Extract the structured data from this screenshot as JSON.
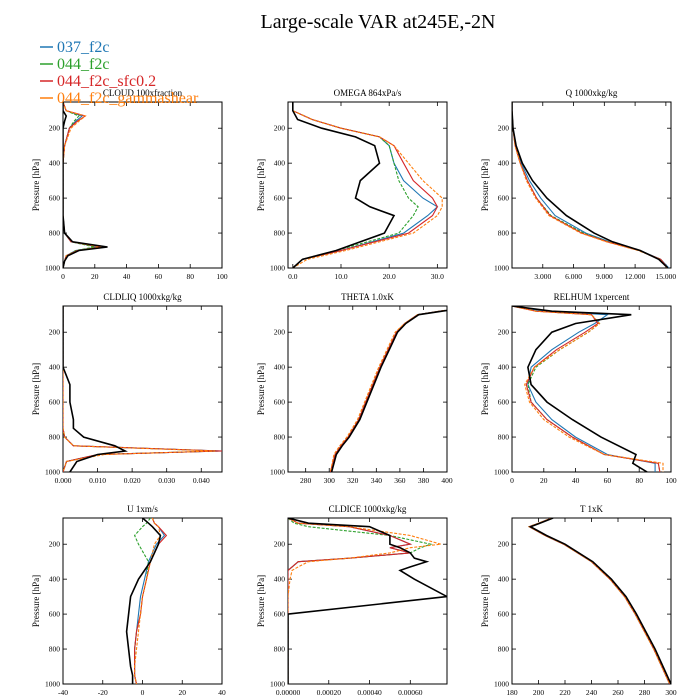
{
  "title": "Large-scale VAR at245E,-2N",
  "colors": {
    "037_f2c": "#1f77b4",
    "044_f2c": "#2ca02c",
    "044_f2c_sfc0.2": "#d62728",
    "044_f2c_gammashear": "#ff7f0e",
    "obs": "#000000"
  },
  "legend": {
    "entries": [
      "037_f2c",
      "044_f2c",
      "044_f2c_sfc0.2",
      "044_f2c_gammashear"
    ]
  },
  "shared": {
    "ylabel": "Pressure [hPa]",
    "yticks": [
      "200",
      "400",
      "600",
      "800",
      "1000"
    ],
    "ylim": [
      1000,
      50
    ]
  },
  "chart_data": [
    {
      "type": "line",
      "title": "CLOUD 100xfraction",
      "xlim": [
        0,
        100
      ],
      "xticks": [
        "0",
        "20",
        "40",
        "60",
        "80",
        "100"
      ],
      "p": [
        50,
        100,
        130,
        160,
        200,
        300,
        400,
        500,
        600,
        700,
        800,
        850,
        880,
        900,
        930,
        960,
        1000
      ],
      "series": [
        {
          "name": "037_f2c",
          "x": [
            0,
            2,
            12,
            8,
            4,
            1,
            0,
            0,
            0,
            0,
            1,
            5,
            22,
            8,
            2,
            1,
            0
          ]
        },
        {
          "name": "044_f2c",
          "x": [
            0,
            2,
            10,
            7,
            4,
            1,
            0,
            0,
            0,
            0,
            1,
            5,
            20,
            8,
            2,
            1,
            0
          ]
        },
        {
          "name": "044_f2c_sfc0.2",
          "x": [
            0,
            2,
            14,
            9,
            4,
            1,
            0,
            0,
            0,
            0,
            1,
            5,
            24,
            9,
            2,
            1,
            0
          ]
        },
        {
          "name": "044_f2c_gammashear",
          "x": [
            0,
            2,
            14,
            10,
            5,
            1,
            0,
            0,
            0,
            0,
            1,
            6,
            24,
            10,
            2,
            1,
            0
          ]
        },
        {
          "name": "obs",
          "x": [
            0,
            0,
            2,
            1,
            0,
            0,
            0,
            0,
            0,
            0,
            1,
            6,
            28,
            10,
            3,
            1,
            0
          ]
        }
      ]
    },
    {
      "type": "line",
      "title": "OMEGA 864xPa/s",
      "xlim": [
        -1,
        32
      ],
      "xticks": [
        "0.0",
        "10.0",
        "20.0",
        "30.0"
      ],
      "p": [
        50,
        100,
        150,
        200,
        250,
        300,
        400,
        500,
        600,
        650,
        700,
        800,
        900,
        950,
        1000
      ],
      "series": [
        {
          "name": "037_f2c",
          "x": [
            0,
            0,
            4,
            10,
            18,
            20,
            21,
            23,
            27,
            30,
            28,
            23,
            10,
            2,
            0
          ]
        },
        {
          "name": "044_f2c",
          "x": [
            0,
            0,
            4,
            10,
            18,
            20,
            21,
            22,
            24,
            26,
            25,
            22,
            9,
            2,
            0
          ]
        },
        {
          "name": "044_f2c_sfc0.2",
          "x": [
            0,
            0,
            4,
            10,
            18,
            21,
            23,
            25,
            29,
            30,
            29,
            24,
            10,
            2,
            0
          ]
        },
        {
          "name": "044_f2c_gammashear",
          "x": [
            0,
            0,
            4,
            10,
            18,
            21,
            24,
            27,
            31,
            31,
            30,
            25,
            11,
            3,
            0
          ]
        },
        {
          "name": "obs",
          "x": [
            0,
            0,
            1,
            6,
            13,
            17,
            18,
            14,
            13,
            16,
            21,
            19,
            9,
            2,
            0
          ]
        }
      ]
    },
    {
      "type": "line",
      "title": "Q 1000xkg/kg",
      "xlim": [
        0,
        15.5
      ],
      "xticks": [
        "3.000",
        "6.000",
        "9.000",
        "12.000",
        "15.000"
      ],
      "p": [
        50,
        100,
        200,
        300,
        400,
        500,
        600,
        700,
        800,
        850,
        900,
        950,
        1000
      ],
      "series": [
        {
          "name": "037_f2c",
          "x": [
            0,
            0,
            0.1,
            0.4,
            0.9,
            1.7,
            2.8,
            4.2,
            7.2,
            9.5,
            12.5,
            14.5,
            15.3
          ]
        },
        {
          "name": "044_f2c",
          "x": [
            0,
            0,
            0.1,
            0.3,
            0.8,
            1.5,
            2.4,
            3.8,
            7.0,
            9.4,
            12.4,
            14.5,
            15.2
          ]
        },
        {
          "name": "044_f2c_sfc0.2",
          "x": [
            0,
            0,
            0.1,
            0.3,
            0.8,
            1.5,
            2.4,
            3.7,
            6.8,
            9.3,
            12.4,
            14.5,
            15.2
          ]
        },
        {
          "name": "044_f2c_gammashear",
          "x": [
            0,
            0,
            0.1,
            0.3,
            0.8,
            1.4,
            2.3,
            3.6,
            6.7,
            9.2,
            12.3,
            14.4,
            15.1
          ]
        },
        {
          "name": "obs",
          "x": [
            0,
            0,
            0.1,
            0.4,
            1.0,
            2.0,
            3.4,
            5.3,
            8.0,
            9.8,
            12.5,
            14.3,
            15.2
          ]
        }
      ]
    },
    {
      "type": "line",
      "title": "CLDLIQ 1000xkg/kg",
      "xlim": [
        0,
        0.046
      ],
      "xticks": [
        "0.000",
        "0.010",
        "0.020",
        "0.030",
        "0.040"
      ],
      "p": [
        50,
        400,
        450,
        500,
        600,
        700,
        750,
        800,
        850,
        880,
        900,
        940,
        1000
      ],
      "series": [
        {
          "name": "037_f2c",
          "x": [
            0,
            0,
            0,
            0,
            0,
            0,
            0,
            0.0005,
            0.003,
            0.046,
            0.01,
            0.001,
            0
          ]
        },
        {
          "name": "044_f2c",
          "x": [
            0,
            0,
            0,
            0,
            0,
            0,
            0,
            0.0005,
            0.003,
            0.045,
            0.01,
            0.001,
            0
          ]
        },
        {
          "name": "044_f2c_sfc0.2",
          "x": [
            0,
            0,
            0,
            0,
            0,
            0,
            0,
            0.0005,
            0.003,
            0.046,
            0.01,
            0.001,
            0
          ]
        },
        {
          "name": "044_f2c_gammashear",
          "x": [
            0,
            0,
            0,
            0,
            0,
            0,
            0,
            0.0005,
            0.003,
            0.044,
            0.012,
            0.001,
            0
          ]
        },
        {
          "name": "obs",
          "x": [
            0,
            0,
            0.001,
            0.002,
            0.002,
            0.003,
            0.003,
            0.006,
            0.015,
            0.018,
            0.01,
            0.004,
            0.002
          ]
        }
      ]
    },
    {
      "type": "line",
      "title": "THETA 1.0xK",
      "xlim": [
        265,
        400
      ],
      "xticks": [
        "280",
        "300",
        "320",
        "340",
        "360",
        "380",
        "400"
      ],
      "p": [
        75,
        100,
        150,
        200,
        300,
        400,
        500,
        600,
        700,
        800,
        850,
        900,
        1000
      ],
      "series": [
        {
          "name": "037_f2c",
          "x": [
            398,
            375,
            364,
            357,
            350,
            343,
            337,
            331,
            325,
            316,
            310,
            305,
            301
          ]
        },
        {
          "name": "044_f2c",
          "x": [
            398,
            375,
            364,
            357,
            350,
            343,
            337,
            331,
            325,
            316,
            310,
            305,
            301
          ]
        },
        {
          "name": "044_f2c_sfc0.2",
          "x": [
            398,
            375,
            364,
            357,
            350,
            343,
            337,
            331,
            325,
            316,
            310,
            305,
            301
          ]
        },
        {
          "name": "044_f2c_gammashear",
          "x": [
            398,
            375,
            364,
            356,
            349,
            342,
            336,
            330,
            324,
            315,
            309,
            304,
            301
          ]
        },
        {
          "name": "obs",
          "x": [
            400,
            376,
            365,
            358,
            351,
            344,
            338,
            332,
            326,
            317,
            311,
            306,
            302
          ]
        }
      ]
    },
    {
      "type": "line",
      "title": "RELHUM 1xpercent",
      "xlim": [
        0,
        100
      ],
      "xticks": [
        "0",
        "20",
        "40",
        "60",
        "80",
        "100"
      ],
      "p": [
        50,
        80,
        100,
        150,
        200,
        300,
        400,
        500,
        600,
        700,
        800,
        900,
        950,
        1000
      ],
      "series": [
        {
          "name": "037_f2c",
          "x": [
            0,
            20,
            60,
            52,
            42,
            25,
            12,
            10,
            15,
            25,
            40,
            60,
            90,
            90
          ]
        },
        {
          "name": "044_f2c",
          "x": [
            0,
            15,
            50,
            55,
            48,
            30,
            15,
            10,
            12,
            22,
            38,
            58,
            92,
            93
          ]
        },
        {
          "name": "044_f2c_sfc0.2",
          "x": [
            0,
            15,
            50,
            54,
            46,
            28,
            14,
            9,
            12,
            22,
            38,
            58,
            92,
            93
          ]
        },
        {
          "name": "044_f2c_gammashear",
          "x": [
            0,
            15,
            50,
            55,
            48,
            30,
            14,
            8,
            11,
            20,
            36,
            58,
            95,
            95
          ]
        },
        {
          "name": "obs",
          "x": [
            0,
            25,
            75,
            40,
            25,
            15,
            10,
            12,
            22,
            38,
            56,
            78,
            76,
            85
          ]
        }
      ]
    },
    {
      "type": "line",
      "title": "U 1xm/s",
      "xlim": [
        -40,
        40
      ],
      "xticks": [
        "-40",
        "-20",
        "0",
        "20",
        "40"
      ],
      "p": [
        50,
        80,
        100,
        150,
        200,
        300,
        400,
        500,
        600,
        700,
        800,
        900,
        950,
        1000
      ],
      "series": [
        {
          "name": "037_f2c",
          "x": [
            5,
            6,
            8,
            11,
            7,
            3,
            1,
            -1,
            -2,
            -3,
            -4,
            -4,
            -4,
            -3
          ]
        },
        {
          "name": "044_f2c",
          "x": [
            4,
            2,
            0,
            -4,
            -2,
            3,
            2,
            0,
            -1,
            -3,
            -4,
            -4,
            -4,
            -3
          ]
        },
        {
          "name": "044_f2c_sfc0.2",
          "x": [
            5,
            6,
            8,
            12,
            8,
            4,
            2,
            0,
            -1,
            -3,
            -4,
            -4,
            -4,
            -3
          ]
        },
        {
          "name": "044_f2c_gammashear",
          "x": [
            5,
            6,
            8,
            9,
            6,
            4,
            2,
            0,
            -1,
            -2,
            -3,
            -4,
            -4,
            -3
          ]
        },
        {
          "name": "obs",
          "x": [
            0,
            3,
            5,
            9,
            8,
            4,
            -2,
            -6,
            -7,
            -8,
            -7,
            -6,
            -5,
            -5
          ]
        }
      ]
    },
    {
      "type": "line",
      "title": "CLDICE 1000xkg/kg",
      "xlim": [
        0,
        0.00078
      ],
      "xticks": [
        "0.00000",
        "0.00020",
        "0.00040",
        "0.00060"
      ],
      "p": [
        50,
        80,
        100,
        150,
        200,
        220,
        250,
        280,
        300,
        330,
        350,
        400,
        500,
        600,
        1000
      ],
      "series": [
        {
          "name": "037_f2c",
          "x": [
            0,
            5e-05,
            0.0003,
            0.0005,
            0.0006,
            0.0005,
            0.0006,
            0.0003,
            5e-05,
            2e-05,
            0,
            0,
            0,
            0,
            0
          ]
        },
        {
          "name": "044_f2c",
          "x": [
            0,
            3e-05,
            0.0001,
            0.0005,
            0.0007,
            0.00065,
            0.0006,
            0.0003,
            5e-05,
            2e-05,
            0,
            0,
            0,
            0,
            0
          ]
        },
        {
          "name": "044_f2c_sfc0.2",
          "x": [
            0,
            5e-05,
            0.0003,
            0.0005,
            0.0006,
            0.0005,
            0.0006,
            0.0003,
            5e-05,
            2e-05,
            0,
            0,
            0,
            0,
            0
          ]
        },
        {
          "name": "044_f2c_gammashear",
          "x": [
            0,
            5e-05,
            0.0003,
            0.0006,
            0.00075,
            0.0006,
            0.0005,
            0.0003,
            0.0001,
            5e-05,
            2e-05,
            1e-05,
            0,
            0,
            0
          ]
        },
        {
          "name": "obs",
          "x": [
            0,
            0.0001,
            0.0004,
            0.0005,
            0.0005,
            0.00055,
            0.0006,
            0.00062,
            0.00068,
            0.0006,
            0.00055,
            0.00062,
            0.00078,
            0,
            0
          ]
        }
      ]
    },
    {
      "type": "line",
      "title": "T 1xK",
      "xlim": [
        180,
        300
      ],
      "xticks": [
        "180",
        "200",
        "220",
        "240",
        "260",
        "280",
        "300"
      ],
      "p": [
        50,
        80,
        100,
        150,
        200,
        300,
        400,
        500,
        600,
        700,
        800,
        900,
        1000
      ],
      "series": [
        {
          "name": "037_f2c",
          "x": [
            210,
            200,
            193,
            205,
            219,
            240,
            254,
            265,
            273,
            280,
            287,
            293,
            299
          ]
        },
        {
          "name": "044_f2c",
          "x": [
            210,
            200,
            193,
            205,
            219,
            240,
            254,
            265,
            273,
            280,
            287,
            293,
            299
          ]
        },
        {
          "name": "044_f2c_sfc0.2",
          "x": [
            210,
            200,
            193,
            205,
            219,
            240,
            254,
            265,
            273,
            280,
            287,
            293,
            299
          ]
        },
        {
          "name": "044_f2c_gammashear",
          "x": [
            210,
            200,
            193,
            205,
            219,
            240,
            254,
            265,
            273,
            280,
            287,
            293,
            299
          ]
        },
        {
          "name": "obs",
          "x": [
            211,
            201,
            194,
            206,
            220,
            241,
            255,
            266,
            274,
            281,
            288,
            294,
            300
          ]
        }
      ]
    }
  ]
}
